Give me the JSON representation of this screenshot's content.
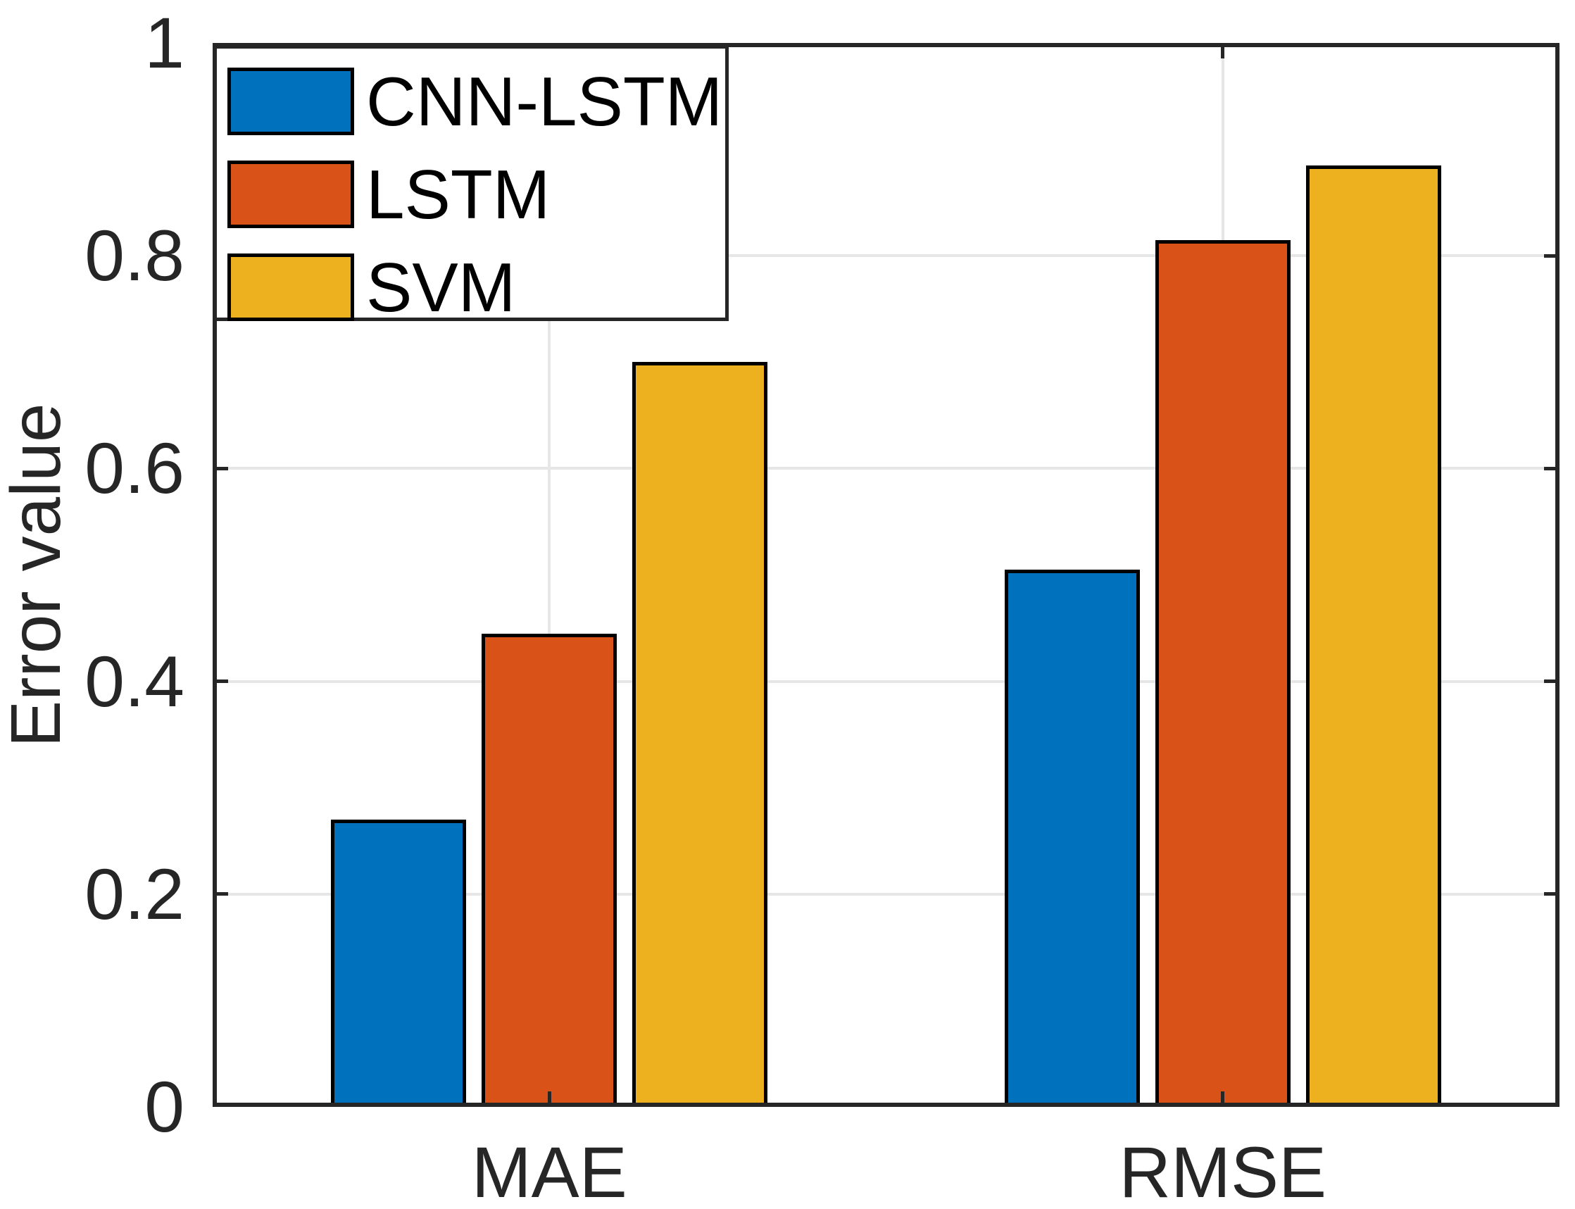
{
  "chart_data": {
    "type": "bar",
    "title": "",
    "categories": [
      "MAE",
      "RMSE"
    ],
    "series": [
      {
        "name": "CNN-LSTM",
        "color": "#0072BD",
        "values": [
          0.27,
          0.505
        ]
      },
      {
        "name": "LSTM",
        "color": "#D95319",
        "values": [
          0.445,
          0.815
        ]
      },
      {
        "name": "SVM",
        "color": "#EDB120",
        "values": [
          0.7,
          0.885
        ]
      }
    ],
    "xlabel": "",
    "ylabel": "Error value",
    "ylim": [
      0,
      1
    ],
    "yticks": [
      0,
      0.2,
      0.4,
      0.6,
      0.8,
      1
    ],
    "ytick_labels": [
      "0",
      "0.2",
      "0.4",
      "0.6",
      "0.8",
      "1"
    ],
    "grid": true,
    "legend_position": "top-left",
    "bar_edge_color": "#000000",
    "axis_color": "#262626",
    "grid_color": "#E6E6E6",
    "background": "#FFFFFF"
  }
}
